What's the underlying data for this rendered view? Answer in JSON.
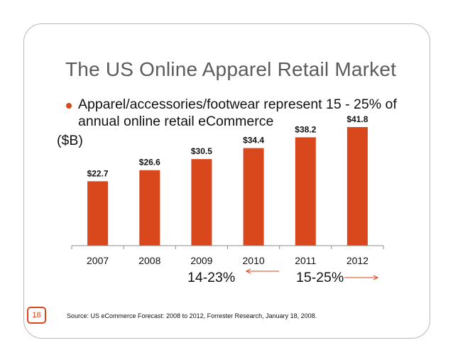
{
  "slide": {
    "title": "The US Online Apparel Retail Market",
    "bullet_line_1": "Apparel/accessories/footwear represent 15 - 25% of",
    "bullet_line_2": "annual online retail eCommerce",
    "unit_label": "($B)",
    "range_1": "14-23%",
    "range_2": "15-25%",
    "page_number": "18",
    "source": "Source: US eCommerce Forecast: 2008 to 2012,  Forrester Research, January 18, 2008."
  },
  "colors": {
    "bar": "#d9471d",
    "accent": "#d9471d",
    "title": "#5b5b5b",
    "frame": "#b9b9b9"
  },
  "chart_data": {
    "type": "bar",
    "title": "",
    "xlabel": "",
    "ylabel": "($B)",
    "categories": [
      "2007",
      "2008",
      "2009",
      "2010",
      "2011",
      "2012"
    ],
    "values": [
      22.7,
      26.6,
      30.5,
      34.4,
      38.2,
      41.8
    ],
    "data_labels": [
      "$22.7",
      "$26.6",
      "$30.5",
      "$34.4",
      "$38.2",
      "$41.8"
    ],
    "ylim": [
      0,
      41.8
    ],
    "grid": false,
    "legend": "none"
  }
}
